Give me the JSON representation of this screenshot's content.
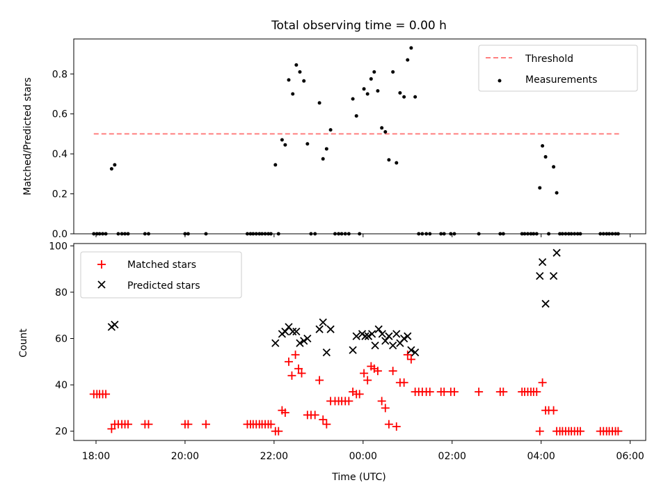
{
  "figure": {
    "title": "Total observing time = 0.00 h"
  },
  "chart_data": [
    {
      "type": "scatter",
      "ylabel": "Matched/Predicted stars",
      "xlabel": "",
      "xlim": [
        17.5,
        30.35
      ],
      "ylim": [
        0,
        0.975
      ],
      "yticks": [
        0.0,
        0.2,
        0.4,
        0.6,
        0.8
      ],
      "xticks": [
        18,
        20,
        22,
        24,
        26,
        28,
        30
      ],
      "legend": {
        "placement": "top-right"
      },
      "threshold": {
        "name": "Threshold",
        "value": 0.5,
        "x": [
          17.95,
          29.75
        ],
        "color": "#ff7f7f"
      },
      "series": [
        {
          "name": "Measurements",
          "color": "#000000",
          "points": [
            [
              17.95,
              0
            ],
            [
              18.02,
              0
            ],
            [
              18.08,
              0
            ],
            [
              18.15,
              0
            ],
            [
              18.22,
              0
            ],
            [
              18.35,
              0.325
            ],
            [
              18.42,
              0.345
            ],
            [
              18.5,
              0
            ],
            [
              18.58,
              0
            ],
            [
              18.65,
              0
            ],
            [
              18.72,
              0
            ],
            [
              19.1,
              0
            ],
            [
              19.18,
              0
            ],
            [
              20,
              0
            ],
            [
              20.07,
              0
            ],
            [
              20.47,
              0
            ],
            [
              21.4,
              0
            ],
            [
              21.47,
              0
            ],
            [
              21.53,
              0
            ],
            [
              21.6,
              0
            ],
            [
              21.67,
              0
            ],
            [
              21.73,
              0
            ],
            [
              21.8,
              0
            ],
            [
              21.87,
              0
            ],
            [
              21.93,
              0
            ],
            [
              22.03,
              0.345
            ],
            [
              22.1,
              0
            ],
            [
              22.18,
              0.47
            ],
            [
              22.25,
              0.445
            ],
            [
              22.33,
              0.77
            ],
            [
              22.42,
              0.7
            ],
            [
              22.5,
              0.845
            ],
            [
              22.58,
              0.81
            ],
            [
              22.67,
              0.765
            ],
            [
              22.75,
              0.45
            ],
            [
              22.83,
              0
            ],
            [
              22.92,
              0
            ],
            [
              23.02,
              0.655
            ],
            [
              23.1,
              0.375
            ],
            [
              23.18,
              0.425
            ],
            [
              23.27,
              0.52
            ],
            [
              23.37,
              0
            ],
            [
              23.45,
              0
            ],
            [
              23.52,
              0
            ],
            [
              23.6,
              0
            ],
            [
              23.68,
              0
            ],
            [
              23.77,
              0.675
            ],
            [
              23.85,
              0.59
            ],
            [
              23.92,
              0
            ],
            [
              24.02,
              0.725
            ],
            [
              24.1,
              0.7
            ],
            [
              24.18,
              0.775
            ],
            [
              24.25,
              0.81
            ],
            [
              24.33,
              0.715
            ],
            [
              24.42,
              0.53
            ],
            [
              24.5,
              0.51
            ],
            [
              24.58,
              0.37
            ],
            [
              24.67,
              0.81
            ],
            [
              24.75,
              0.355
            ],
            [
              24.83,
              0.705
            ],
            [
              24.92,
              0.685
            ],
            [
              25,
              0.87
            ],
            [
              25.08,
              0.93
            ],
            [
              25.17,
              0.685
            ],
            [
              25.25,
              0
            ],
            [
              25.33,
              0
            ],
            [
              25.42,
              0
            ],
            [
              25.5,
              0
            ],
            [
              25.75,
              0
            ],
            [
              25.82,
              0
            ],
            [
              25.97,
              0
            ],
            [
              26.05,
              0
            ],
            [
              26.6,
              0
            ],
            [
              27.08,
              0
            ],
            [
              27.15,
              0
            ],
            [
              27.57,
              0
            ],
            [
              27.63,
              0
            ],
            [
              27.7,
              0
            ],
            [
              27.77,
              0
            ],
            [
              27.83,
              0
            ],
            [
              27.9,
              0
            ],
            [
              27.97,
              0.23
            ],
            [
              28.03,
              0.44
            ],
            [
              28.1,
              0.385
            ],
            [
              28.17,
              0
            ],
            [
              28.28,
              0.335
            ],
            [
              28.35,
              0.205
            ],
            [
              28.42,
              0
            ],
            [
              28.48,
              0
            ],
            [
              28.55,
              0
            ],
            [
              28.62,
              0
            ],
            [
              28.68,
              0
            ],
            [
              28.75,
              0
            ],
            [
              28.82,
              0
            ],
            [
              28.88,
              0
            ],
            [
              29.33,
              0
            ],
            [
              29.4,
              0
            ],
            [
              29.47,
              0
            ],
            [
              29.53,
              0
            ],
            [
              29.6,
              0
            ],
            [
              29.67,
              0
            ],
            [
              29.73,
              0
            ]
          ]
        }
      ]
    },
    {
      "type": "scatter",
      "xlabel": "Time (UTC)",
      "ylabel": "Count",
      "xlim": [
        17.5,
        30.35
      ],
      "ylim": [
        16,
        101
      ],
      "yticks": [
        20,
        40,
        60,
        80,
        100
      ],
      "xticks": [
        18,
        20,
        22,
        24,
        26,
        28,
        30
      ],
      "xticklabels": [
        "18:00",
        "20:00",
        "22:00",
        "00:00",
        "02:00",
        "04:00",
        "06:00"
      ],
      "legend": {
        "placement": "top-left"
      },
      "series": [
        {
          "name": "Matched stars",
          "marker": "plus",
          "color": "#ff0000",
          "points": [
            [
              17.95,
              36
            ],
            [
              18.02,
              36
            ],
            [
              18.08,
              36
            ],
            [
              18.15,
              36
            ],
            [
              18.22,
              36
            ],
            [
              18.35,
              21
            ],
            [
              18.42,
              23
            ],
            [
              18.5,
              23
            ],
            [
              18.58,
              23
            ],
            [
              18.65,
              23
            ],
            [
              18.72,
              23
            ],
            [
              19.1,
              23
            ],
            [
              19.18,
              23
            ],
            [
              20,
              23
            ],
            [
              20.07,
              23
            ],
            [
              20.47,
              23
            ],
            [
              21.4,
              23
            ],
            [
              21.47,
              23
            ],
            [
              21.53,
              23
            ],
            [
              21.6,
              23
            ],
            [
              21.67,
              23
            ],
            [
              21.73,
              23
            ],
            [
              21.8,
              23
            ],
            [
              21.87,
              23
            ],
            [
              21.93,
              23
            ],
            [
              22.03,
              20
            ],
            [
              22.1,
              20
            ],
            [
              22.18,
              29
            ],
            [
              22.25,
              28
            ],
            [
              22.33,
              50
            ],
            [
              22.4,
              44
            ],
            [
              22.48,
              53
            ],
            [
              22.55,
              47
            ],
            [
              22.62,
              45
            ],
            [
              22.75,
              27
            ],
            [
              22.83,
              27
            ],
            [
              22.92,
              27
            ],
            [
              23.02,
              42
            ],
            [
              23.1,
              25
            ],
            [
              23.18,
              23
            ],
            [
              23.27,
              33
            ],
            [
              23.37,
              33
            ],
            [
              23.45,
              33
            ],
            [
              23.52,
              33
            ],
            [
              23.6,
              33
            ],
            [
              23.68,
              33
            ],
            [
              23.77,
              37
            ],
            [
              23.85,
              36
            ],
            [
              23.92,
              36
            ],
            [
              24.02,
              45
            ],
            [
              24.1,
              42
            ],
            [
              24.18,
              48
            ],
            [
              24.25,
              47
            ],
            [
              24.33,
              46
            ],
            [
              24.42,
              33
            ],
            [
              24.5,
              30
            ],
            [
              24.58,
              23
            ],
            [
              24.67,
              46
            ],
            [
              24.75,
              22
            ],
            [
              24.83,
              41
            ],
            [
              24.92,
              41
            ],
            [
              25,
              53
            ],
            [
              25.08,
              51
            ],
            [
              25.17,
              37
            ],
            [
              25.25,
              37
            ],
            [
              25.33,
              37
            ],
            [
              25.42,
              37
            ],
            [
              25.5,
              37
            ],
            [
              25.75,
              37
            ],
            [
              25.82,
              37
            ],
            [
              25.97,
              37
            ],
            [
              26.05,
              37
            ],
            [
              26.6,
              37
            ],
            [
              27.08,
              37
            ],
            [
              27.15,
              37
            ],
            [
              27.57,
              37
            ],
            [
              27.63,
              37
            ],
            [
              27.7,
              37
            ],
            [
              27.77,
              37
            ],
            [
              27.83,
              37
            ],
            [
              27.9,
              37
            ],
            [
              27.97,
              20
            ],
            [
              28.03,
              41
            ],
            [
              28.1,
              29
            ],
            [
              28.17,
              29
            ],
            [
              28.28,
              29
            ],
            [
              28.35,
              20
            ],
            [
              28.42,
              20
            ],
            [
              28.48,
              20
            ],
            [
              28.55,
              20
            ],
            [
              28.62,
              20
            ],
            [
              28.68,
              20
            ],
            [
              28.75,
              20
            ],
            [
              28.82,
              20
            ],
            [
              28.88,
              20
            ],
            [
              29.33,
              20
            ],
            [
              29.4,
              20
            ],
            [
              29.47,
              20
            ],
            [
              29.53,
              20
            ],
            [
              29.6,
              20
            ],
            [
              29.67,
              20
            ],
            [
              29.73,
              20
            ]
          ]
        },
        {
          "name": "Predicted stars",
          "marker": "x",
          "color": "#000000",
          "points": [
            [
              18.35,
              65
            ],
            [
              18.42,
              66
            ],
            [
              22.03,
              58
            ],
            [
              22.18,
              62
            ],
            [
              22.25,
              63
            ],
            [
              22.33,
              65
            ],
            [
              22.42,
              63
            ],
            [
              22.5,
              63
            ],
            [
              22.58,
              58
            ],
            [
              22.67,
              59
            ],
            [
              22.75,
              60
            ],
            [
              23.02,
              64
            ],
            [
              23.1,
              67
            ],
            [
              23.18,
              54
            ],
            [
              23.27,
              64
            ],
            [
              23.77,
              55
            ],
            [
              23.85,
              61
            ],
            [
              23.98,
              62
            ],
            [
              24.05,
              61
            ],
            [
              24.12,
              61
            ],
            [
              24.2,
              62
            ],
            [
              24.27,
              57
            ],
            [
              24.35,
              64
            ],
            [
              24.43,
              62
            ],
            [
              24.5,
              59
            ],
            [
              24.58,
              61
            ],
            [
              24.67,
              57
            ],
            [
              24.75,
              62
            ],
            [
              24.83,
              58
            ],
            [
              24.92,
              60
            ],
            [
              25,
              61
            ],
            [
              25.08,
              55
            ],
            [
              25.17,
              54
            ],
            [
              27.97,
              87
            ],
            [
              28.03,
              93
            ],
            [
              28.1,
              75
            ],
            [
              28.28,
              87
            ],
            [
              28.35,
              97
            ]
          ]
        }
      ]
    }
  ]
}
